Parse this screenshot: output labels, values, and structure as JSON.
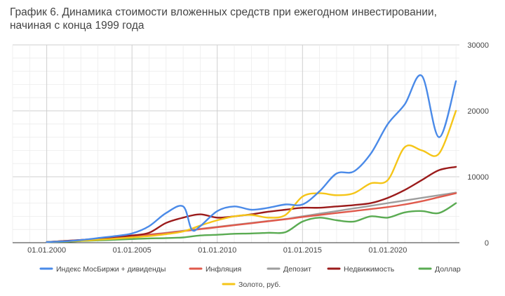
{
  "chart_data": {
    "type": "line",
    "title_line1": "График 6. Динамика стоимости вложенных средств при ежегодном инвестировании,",
    "title_line2": "начиная с конца 1999 года",
    "x_tick_labels": [
      "01.01.2000",
      "01.01.2005",
      "01.01.2010",
      "01.01.2015",
      "01.01.2020"
    ],
    "x_tick_years": [
      2000,
      2005,
      2010,
      2015,
      2020
    ],
    "y_tick_labels": [
      "0",
      "10000",
      "20000",
      "30000"
    ],
    "y_ticks": [
      0,
      10000,
      20000,
      30000
    ],
    "ylim": [
      0,
      30000
    ],
    "xlim": [
      1998,
      2024.2
    ],
    "grid": true,
    "legend_position": "bottom",
    "series": [
      {
        "name": "Индекс МосБиржи + дивиденды",
        "color": "#4a8ae8",
        "x": [
          2000,
          2001,
          2002,
          2003,
          2004,
          2005,
          2006,
          2007,
          2008,
          2008.5,
          2009,
          2010,
          2011,
          2012,
          2013,
          2014,
          2015,
          2016,
          2017,
          2018,
          2019,
          2020,
          2021,
          2022,
          2023,
          2024
        ],
        "y": [
          100,
          200,
          400,
          700,
          1000,
          1400,
          2500,
          4500,
          5500,
          2000,
          2500,
          4800,
          5500,
          5000,
          5300,
          5800,
          5800,
          7800,
          10500,
          10800,
          13500,
          18000,
          21000,
          25300,
          16000,
          24500
        ]
      },
      {
        "name": "Инфляция",
        "color": "#e05a4c",
        "x": [
          2000,
          2001,
          2002,
          2003,
          2004,
          2005,
          2006,
          2007,
          2008,
          2009,
          2010,
          2011,
          2012,
          2013,
          2014,
          2015,
          2016,
          2017,
          2018,
          2019,
          2020,
          2021,
          2022,
          2023,
          2024
        ],
        "y": [
          100,
          250,
          420,
          600,
          800,
          1000,
          1200,
          1450,
          1750,
          2050,
          2350,
          2650,
          2950,
          3250,
          3550,
          3900,
          4200,
          4500,
          4800,
          5100,
          5400,
          5800,
          6300,
          6900,
          7500
        ]
      },
      {
        "name": "Депозит",
        "color": "#9e9e9e",
        "x": [
          2000,
          2001,
          2002,
          2003,
          2004,
          2005,
          2006,
          2007,
          2008,
          2009,
          2010,
          2011,
          2012,
          2013,
          2014,
          2015,
          2016,
          2017,
          2018,
          2019,
          2020,
          2021,
          2022,
          2023,
          2024
        ],
        "y": [
          100,
          250,
          420,
          600,
          800,
          1000,
          1250,
          1500,
          1800,
          2100,
          2400,
          2700,
          3000,
          3300,
          3600,
          4000,
          4400,
          4800,
          5200,
          5600,
          6000,
          6400,
          6800,
          7200,
          7600
        ]
      },
      {
        "name": "Недвижимость",
        "color": "#9b1b1b",
        "x": [
          2000,
          2001,
          2002,
          2003,
          2004,
          2005,
          2006,
          2007,
          2008,
          2009,
          2010,
          2011,
          2012,
          2013,
          2014,
          2015,
          2016,
          2017,
          2018,
          2019,
          2020,
          2021,
          2022,
          2023,
          2024
        ],
        "y": [
          100,
          250,
          400,
          600,
          900,
          1100,
          1500,
          3000,
          3800,
          4300,
          3800,
          4000,
          4300,
          4700,
          5000,
          5300,
          5300,
          5500,
          5700,
          6000,
          6800,
          8000,
          9500,
          11000,
          11500
        ]
      },
      {
        "name": "Доллар",
        "color": "#5aab52",
        "x": [
          2000,
          2001,
          2002,
          2003,
          2004,
          2005,
          2006,
          2007,
          2008,
          2009,
          2010,
          2011,
          2012,
          2013,
          2014,
          2015,
          2016,
          2017,
          2018,
          2019,
          2020,
          2021,
          2022,
          2023,
          2024
        ],
        "y": [
          100,
          150,
          250,
          350,
          450,
          550,
          650,
          700,
          800,
          1100,
          1200,
          1350,
          1400,
          1500,
          1600,
          3200,
          3800,
          3400,
          3200,
          4000,
          3800,
          4600,
          4800,
          4500,
          6000
        ]
      },
      {
        "name": "Золото, руб.",
        "color": "#f5c518",
        "x": [
          2000,
          2001,
          2002,
          2003,
          2004,
          2005,
          2006,
          2007,
          2008,
          2009,
          2010,
          2011,
          2012,
          2013,
          2014,
          2015,
          2016,
          2017,
          2018,
          2019,
          2020,
          2021,
          2022,
          2023,
          2024
        ],
        "y": [
          100,
          200,
          300,
          450,
          600,
          800,
          1000,
          1300,
          1700,
          2600,
          3400,
          4000,
          4200,
          3800,
          4200,
          7000,
          7500,
          7200,
          7500,
          9000,
          9500,
          14500,
          14000,
          13500,
          20000
        ]
      }
    ]
  }
}
